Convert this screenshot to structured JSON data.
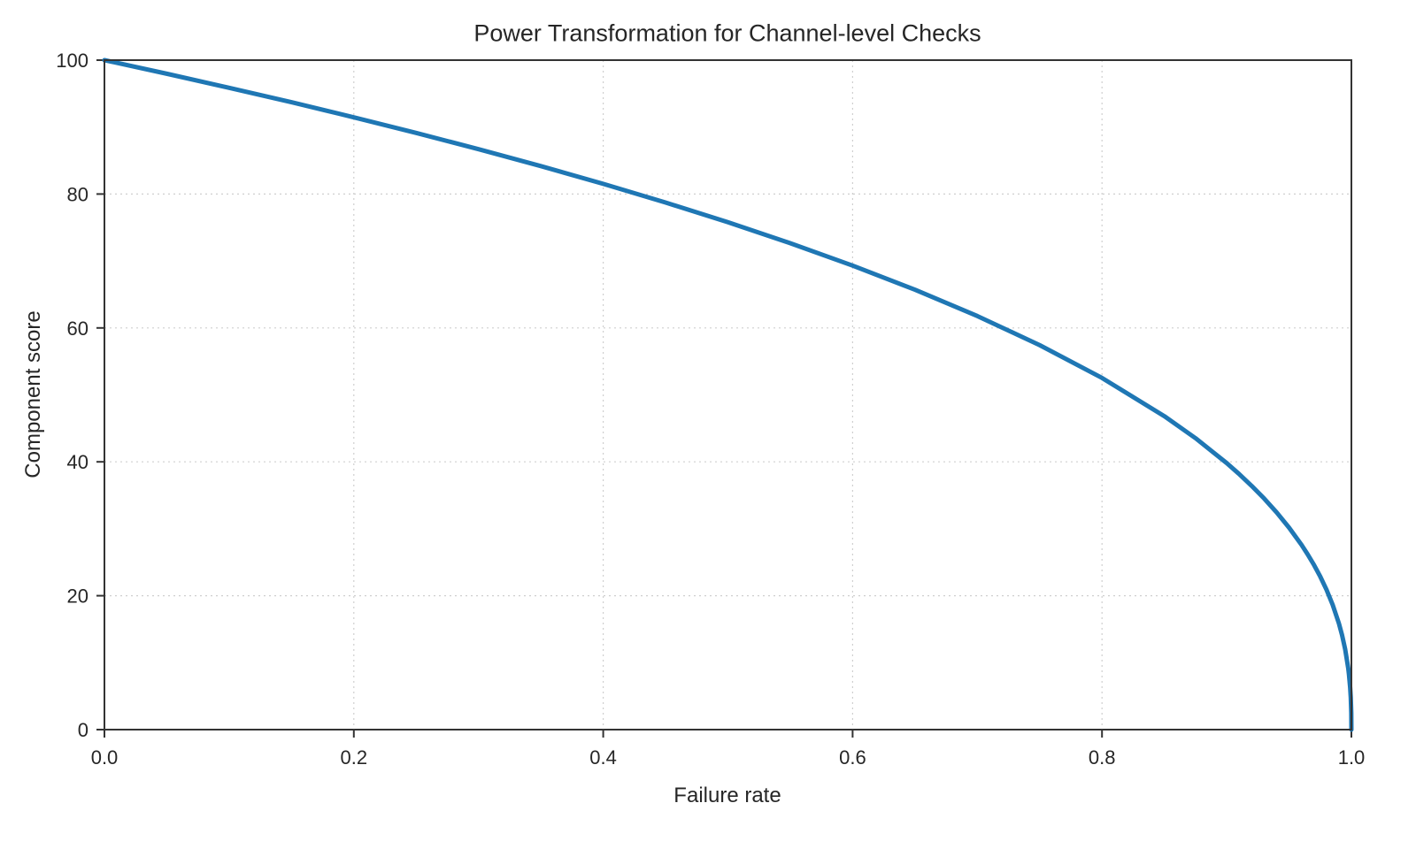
{
  "figure": {
    "background": "#ffffff",
    "text_color": "#262626",
    "spine_color": "#333333",
    "grid_color": "#cfcfcf"
  },
  "chart_data": {
    "type": "line",
    "title": "Power Transformation for Channel-level Checks",
    "xlabel": "Failure rate",
    "ylabel": "Component score",
    "xlim": [
      0.0,
      1.0
    ],
    "ylim": [
      0,
      100
    ],
    "x_ticks": [
      0.0,
      0.2,
      0.4,
      0.6,
      0.8,
      1.0
    ],
    "x_tick_labels": [
      "0.0",
      "0.2",
      "0.4",
      "0.6",
      "0.8",
      "1.0"
    ],
    "y_ticks": [
      0,
      20,
      40,
      60,
      80,
      100
    ],
    "y_tick_labels": [
      "0",
      "20",
      "40",
      "60",
      "80",
      "100"
    ],
    "grid": true,
    "grid_style": "dotted",
    "legend": false,
    "series": [
      {
        "name": "component-score-curve",
        "color": "#1f77b4",
        "line_width": 5,
        "points": [
          [
            0,
            100
          ],
          [
            0.05,
            97.97
          ],
          [
            0.1,
            95.87
          ],
          [
            0.15,
            93.71
          ],
          [
            0.2,
            91.46
          ],
          [
            0.25,
            89.13
          ],
          [
            0.3,
            86.7
          ],
          [
            0.35,
            84.17
          ],
          [
            0.4,
            81.52
          ],
          [
            0.45,
            78.73
          ],
          [
            0.5,
            75.79
          ],
          [
            0.55,
            72.66
          ],
          [
            0.6,
            69.31
          ],
          [
            0.65,
            65.71
          ],
          [
            0.7,
            61.78
          ],
          [
            0.75,
            57.43
          ],
          [
            0.8,
            52.53
          ],
          [
            0.85,
            46.82
          ],
          [
            0.875,
            43.53
          ],
          [
            0.9,
            39.81
          ],
          [
            0.91,
            38.17
          ],
          [
            0.92,
            36.41
          ],
          [
            0.93,
            34.52
          ],
          [
            0.94,
            32.45
          ],
          [
            0.95,
            30.17
          ],
          [
            0.96,
            27.6
          ],
          [
            0.965,
            26.16
          ],
          [
            0.97,
            24.6
          ],
          [
            0.975,
            22.87
          ],
          [
            0.98,
            20.91
          ],
          [
            0.985,
            18.64
          ],
          [
            0.99,
            15.85
          ],
          [
            0.9925,
            14.13
          ],
          [
            0.995,
            12.01
          ],
          [
            0.9975,
            9.11
          ],
          [
            0.998,
            8.33
          ],
          [
            0.999,
            6.31
          ],
          [
            0.9995,
            4.78
          ],
          [
            0.9999,
            2.51
          ],
          [
            1,
            0
          ]
        ]
      }
    ]
  }
}
